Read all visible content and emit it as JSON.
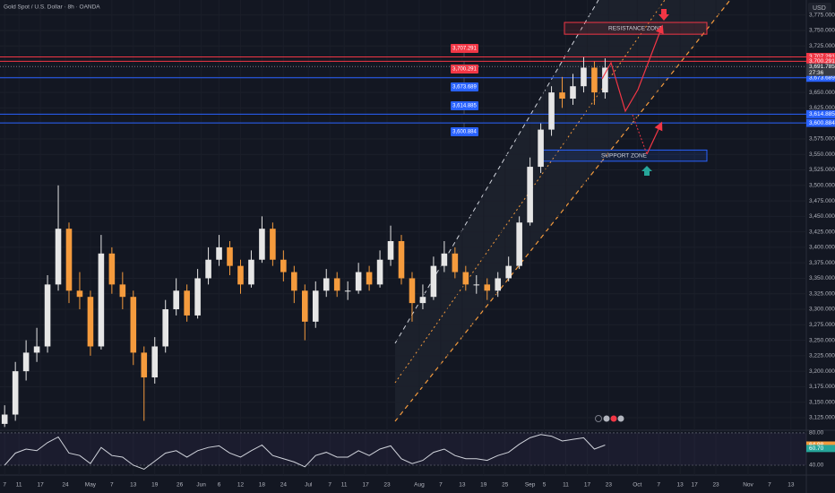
{
  "chart_data": {
    "type": "candlestick",
    "title": "Gold Spot / U.S. Dollar · 8h · OANDA",
    "currency": "USD",
    "up_color": "#e6e6e6",
    "down_color": "#f59b3d",
    "xlim": [
      95.7,
      321.3
    ],
    "ylim": [
      3104.7,
      3799.2
    ],
    "xticks": [
      {
        "value": 97,
        "label": "7"
      },
      {
        "value": 101,
        "label": "11"
      },
      {
        "value": 107,
        "label": "17"
      },
      {
        "value": 114,
        "label": "24"
      },
      {
        "value": 121,
        "label": "May"
      },
      {
        "value": 127,
        "label": "7"
      },
      {
        "value": 133,
        "label": "13"
      },
      {
        "value": 139,
        "label": "19"
      },
      {
        "value": 146,
        "label": "26"
      },
      {
        "value": 152,
        "label": "Jun"
      },
      {
        "value": 157,
        "label": "6"
      },
      {
        "value": 163,
        "label": "12"
      },
      {
        "value": 169,
        "label": "18"
      },
      {
        "value": 175,
        "label": "24"
      },
      {
        "value": 182,
        "label": "Jul"
      },
      {
        "value": 188,
        "label": "7"
      },
      {
        "value": 192,
        "label": "11"
      },
      {
        "value": 198,
        "label": "17"
      },
      {
        "value": 204,
        "label": "23"
      },
      {
        "value": 213,
        "label": "Aug"
      },
      {
        "value": 219,
        "label": "7"
      },
      {
        "value": 225,
        "label": "13"
      },
      {
        "value": 231,
        "label": "19"
      },
      {
        "value": 237,
        "label": "25"
      },
      {
        "value": 244,
        "label": "Sep"
      },
      {
        "value": 248,
        "label": "5"
      },
      {
        "value": 254,
        "label": "11"
      },
      {
        "value": 260,
        "label": "17"
      },
      {
        "value": 266,
        "label": "23"
      },
      {
        "value": 274,
        "label": "Oct"
      },
      {
        "value": 280,
        "label": "7"
      },
      {
        "value": 286,
        "label": "13"
      },
      {
        "value": 290,
        "label": "17"
      },
      {
        "value": 296,
        "label": "23"
      },
      {
        "value": 305,
        "label": "Nov"
      },
      {
        "value": 311,
        "label": "7"
      },
      {
        "value": 317,
        "label": "13"
      }
    ],
    "yticks": [
      {
        "value": 3125,
        "label": "3,125.000"
      },
      {
        "value": 3150,
        "label": "3,150.000"
      },
      {
        "value": 3175,
        "label": "3,175.000"
      },
      {
        "value": 3200,
        "label": "3,200.000"
      },
      {
        "value": 3225,
        "label": "3,225.000"
      },
      {
        "value": 3250,
        "label": "3,250.000"
      },
      {
        "value": 3275,
        "label": "3,275.000"
      },
      {
        "value": 3300,
        "label": "3,300.000"
      },
      {
        "value": 3325,
        "label": "3,325.000"
      },
      {
        "value": 3350,
        "label": "3,350.000"
      },
      {
        "value": 3375,
        "label": "3,375.000"
      },
      {
        "value": 3400,
        "label": "3,400.000"
      },
      {
        "value": 3425,
        "label": "3,425.000"
      },
      {
        "value": 3450,
        "label": "3,450.000"
      },
      {
        "value": 3475,
        "label": "3,475.000"
      },
      {
        "value": 3500,
        "label": "3,500.000"
      },
      {
        "value": 3525,
        "label": "3,525.000"
      },
      {
        "value": 3550,
        "label": "3,550.000"
      },
      {
        "value": 3575,
        "label": "3,575.000"
      },
      {
        "value": 3600,
        "label": "3,600.000"
      },
      {
        "value": 3625,
        "label": "3,625.000"
      },
      {
        "value": 3650,
        "label": "3,650.000"
      },
      {
        "value": 3675,
        "label": "3,675.000"
      },
      {
        "value": 3725,
        "label": "3,725.000"
      },
      {
        "value": 3750,
        "label": "3,750.000"
      },
      {
        "value": 3775,
        "label": "3,775.000"
      }
    ],
    "x": [
      97,
      100,
      103,
      106,
      109,
      112,
      115,
      118,
      121,
      124,
      127,
      130,
      133,
      136,
      139,
      142,
      145,
      148,
      151,
      154,
      157,
      160,
      163,
      166,
      169,
      172,
      175,
      178,
      181,
      184,
      187,
      190,
      193,
      196,
      199,
      202,
      205,
      208,
      211,
      214,
      217,
      220,
      223,
      226,
      229,
      232,
      235,
      238,
      241,
      244,
      247,
      250,
      253,
      256,
      259,
      262,
      265
    ],
    "open": [
      3115,
      3130,
      3200,
      3230,
      3240,
      3340,
      3430,
      3330,
      3320,
      3240,
      3390,
      3340,
      3320,
      3230,
      3190,
      3240,
      3300,
      3330,
      3290,
      3350,
      3380,
      3400,
      3370,
      3340,
      3380,
      3430,
      3380,
      3360,
      3330,
      3280,
      3330,
      3350,
      3330,
      3330,
      3360,
      3340,
      3380,
      3410,
      3350,
      3310,
      3320,
      3370,
      3390,
      3360,
      3340,
      3340,
      3330,
      3350,
      3370,
      3440,
      3530,
      3590,
      3650,
      3640,
      3660,
      3690,
      3650
    ],
    "high": [
      3145,
      3215,
      3250,
      3270,
      3355,
      3500,
      3440,
      3360,
      3330,
      3420,
      3400,
      3360,
      3330,
      3240,
      3255,
      3315,
      3350,
      3340,
      3365,
      3400,
      3420,
      3410,
      3380,
      3395,
      3450,
      3440,
      3395,
      3370,
      3340,
      3345,
      3365,
      3360,
      3345,
      3375,
      3370,
      3395,
      3435,
      3420,
      3360,
      3340,
      3385,
      3410,
      3400,
      3370,
      3355,
      3350,
      3360,
      3385,
      3450,
      3545,
      3600,
      3660,
      3675,
      3680,
      3707,
      3700,
      3705
    ],
    "low": [
      3110,
      3120,
      3185,
      3215,
      3230,
      3330,
      3310,
      3300,
      3225,
      3235,
      3325,
      3300,
      3210,
      3120,
      3180,
      3230,
      3290,
      3280,
      3285,
      3340,
      3370,
      3355,
      3325,
      3335,
      3375,
      3370,
      3345,
      3310,
      3250,
      3270,
      3320,
      3320,
      3315,
      3325,
      3330,
      3335,
      3370,
      3340,
      3280,
      3300,
      3315,
      3360,
      3350,
      3330,
      3325,
      3315,
      3320,
      3345,
      3365,
      3435,
      3520,
      3580,
      3625,
      3630,
      3650,
      3630,
      3640
    ],
    "close": [
      3130,
      3200,
      3230,
      3240,
      3340,
      3430,
      3330,
      3320,
      3240,
      3390,
      3340,
      3320,
      3230,
      3190,
      3240,
      3300,
      3330,
      3290,
      3350,
      3380,
      3400,
      3370,
      3340,
      3380,
      3430,
      3380,
      3360,
      3330,
      3280,
      3330,
      3350,
      3330,
      3330,
      3360,
      3340,
      3380,
      3410,
      3350,
      3310,
      3320,
      3370,
      3390,
      3360,
      3340,
      3340,
      3330,
      3350,
      3370,
      3440,
      3530,
      3590,
      3650,
      3640,
      3660,
      3690,
      3650,
      3690
    ],
    "price_tags": [
      {
        "value": 3707.291,
        "label": "3,707.291",
        "color": "#f23645"
      },
      {
        "value": 3700.291,
        "label": "3,700.291",
        "color": "#f23645"
      },
      {
        "value": 3673.689,
        "label": "3,673.689",
        "color": "#2962ff"
      },
      {
        "value": 3614.885,
        "label": "3,614.885",
        "color": "#2962ff"
      },
      {
        "value": 3600.884,
        "label": "3,600.884",
        "color": "#2962ff"
      }
    ],
    "last_price": {
      "value": 3691.785,
      "label": "3,691.785",
      "countdown": "27:36"
    },
    "zones": [
      {
        "label": "RESISTANCE ZONE",
        "low": 3744,
        "high": 3763
      },
      {
        "label": "SUPPORT ZONE",
        "low": 3539,
        "high": 3557
      }
    ],
    "rsi": {
      "ylim": [
        30,
        83.3
      ],
      "yticks": [
        {
          "value": 80,
          "label": "80.00"
        },
        {
          "value": 40,
          "label": "40.00"
        }
      ],
      "values": [
        40,
        55,
        60,
        58,
        68,
        75,
        55,
        52,
        42,
        62,
        52,
        50,
        40,
        35,
        45,
        55,
        58,
        50,
        58,
        62,
        64,
        55,
        50,
        58,
        65,
        52,
        48,
        44,
        38,
        52,
        56,
        50,
        50,
        58,
        52,
        60,
        64,
        48,
        42,
        46,
        56,
        60,
        52,
        48,
        48,
        46,
        52,
        56,
        66,
        74,
        78,
        76,
        70,
        72,
        74,
        60,
        65
      ],
      "tags": [
        {
          "value": 64.98,
          "label": "64.98",
          "color": "#f59b3d"
        },
        {
          "value": 60.7,
          "label": "60.70",
          "color": "#26a69a"
        }
      ]
    }
  }
}
